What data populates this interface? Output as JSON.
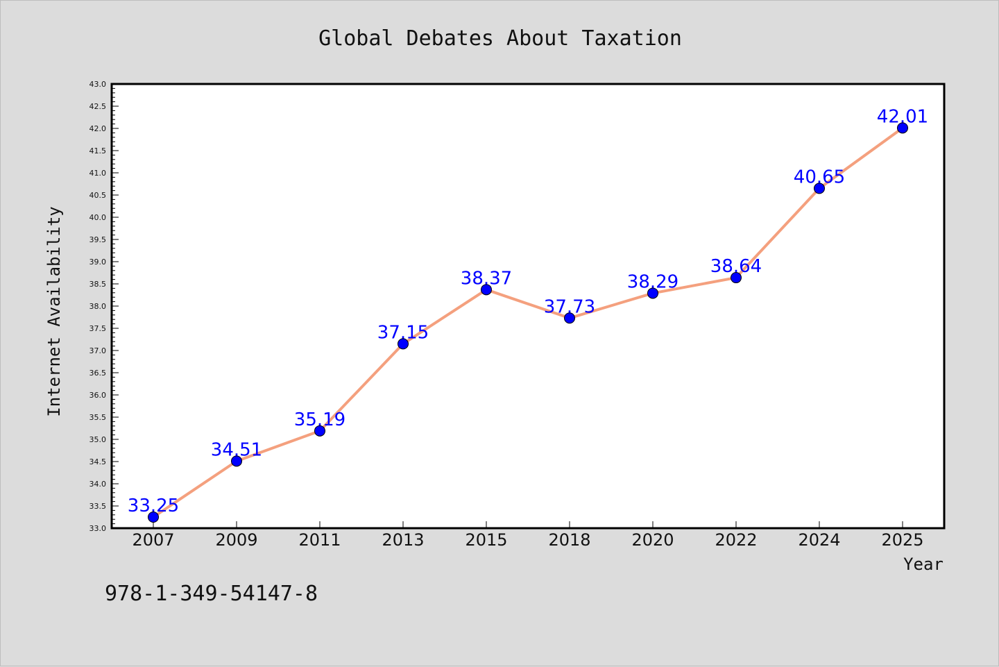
{
  "chart_data": {
    "type": "line",
    "title": "Global Debates About Taxation",
    "xlabel": "Year",
    "ylabel": "Internet Availability",
    "categories": [
      "2007",
      "2009",
      "2011",
      "2013",
      "2015",
      "2018",
      "2020",
      "2022",
      "2024",
      "2025"
    ],
    "series": [
      {
        "values": [
          33.25,
          34.51,
          35.19,
          37.15,
          38.37,
          37.73,
          38.29,
          38.64,
          40.65,
          42.01
        ],
        "labels": [
          "33.25",
          "34.51",
          "35.19",
          "37.15",
          "38.37",
          "37.73",
          "38.29",
          "38.64",
          "40.65",
          "42.01"
        ]
      }
    ],
    "ylim": [
      33.0,
      43.0
    ],
    "yticks": [
      "33.0",
      "33.5",
      "34.0",
      "34.5",
      "35.0",
      "35.5",
      "36.0",
      "36.5",
      "37.0",
      "37.5",
      "38.0",
      "38.5",
      "39.0",
      "39.5",
      "40.0",
      "40.5",
      "41.0",
      "41.5",
      "42.0",
      "42.5",
      "43.0"
    ],
    "grid": false,
    "line_color": "#f4a07e",
    "marker_color": "#0000ff",
    "label_color": "#0000ff"
  },
  "footer": {
    "isbn": "978-1-349-54147-8"
  }
}
